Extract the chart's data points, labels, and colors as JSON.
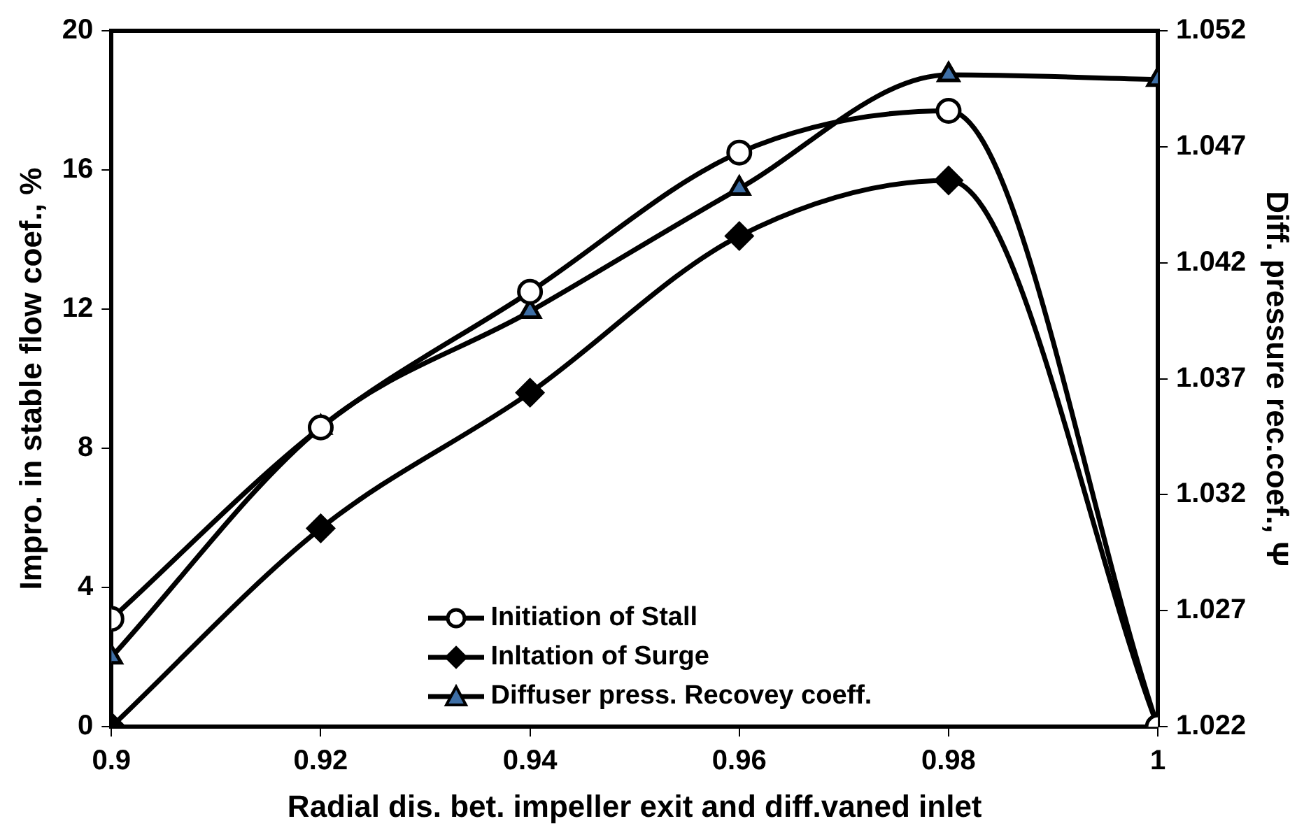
{
  "chart_data": {
    "type": "line",
    "xlabel": "Radial dis. bet. impeller exit and diff.vaned inlet",
    "ylabel": "Impro. in stable flow coef., %",
    "y2label": "Diff. pressure rec.coef., Ψ",
    "x": [
      0.9,
      0.92,
      0.94,
      0.96,
      0.98,
      1
    ],
    "xlim": [
      0.9,
      1
    ],
    "xticks": [
      0.9,
      0.92,
      0.94,
      0.96,
      0.98,
      1
    ],
    "ylim": [
      0,
      20
    ],
    "yticks": [
      0,
      4,
      8,
      12,
      16,
      20
    ],
    "y2lim": [
      1.022,
      1.052
    ],
    "y2ticks": [
      1.022,
      1.027,
      1.032,
      1.037,
      1.042,
      1.047,
      1.052
    ],
    "grid": false,
    "legend": "bottom",
    "series": [
      {
        "name": "Initiation of Stall",
        "color": "#ffffff",
        "marker": "circle",
        "values": [
          3.1,
          8.6,
          12.5,
          16.5,
          17.7,
          0
        ]
      },
      {
        "name": "Inltation of Surge",
        "color": "#000000",
        "marker": "diamond",
        "values": [
          0,
          5.7,
          9.6,
          14.1,
          15.7,
          0
        ]
      },
      {
        "name": "Diffuser press. Recovey coeff.",
        "color": "#3e6fa6",
        "marker": "triangle",
        "axis": "y2",
        "values": [
          1.025,
          1.0349,
          1.0399,
          1.0452,
          1.0501,
          1.0499
        ]
      }
    ]
  }
}
